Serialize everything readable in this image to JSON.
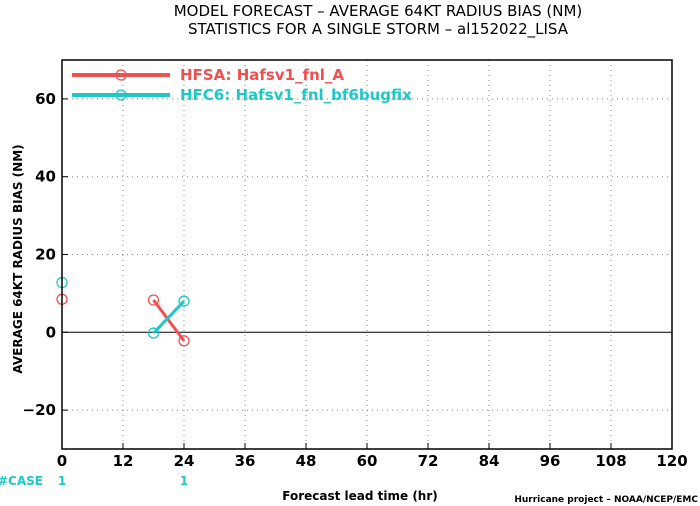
{
  "title_line1": "MODEL FORECAST – AVERAGE 64KT RADIUS BIAS (NM)",
  "title_line2": "STATISTICS FOR A SINGLE STORM – al152022_LISA",
  "credit": "Hurricane project – NOAA/NCEP/EMC",
  "case_label": "#CASE",
  "case_counts": [
    {
      "x": 0,
      "label": "1"
    },
    {
      "x": 24,
      "label": "1"
    }
  ],
  "colors": {
    "hfsa": "#f05050",
    "hfc6": "#1fc8c8",
    "zero_line": "#000000",
    "grid": "#888888"
  },
  "chart_data": {
    "type": "line",
    "title": "MODEL FORECAST – AVERAGE 64KT RADIUS BIAS (NM)",
    "subtitle": "STATISTICS FOR A SINGLE STORM – al152022_LISA",
    "xlabel": "Forecast lead time (hr)",
    "ylabel": "AVERAGE 64KT RADIUS BIAS (NM)",
    "xlim": [
      0,
      120
    ],
    "ylim": [
      -30,
      70
    ],
    "xticks": [
      0,
      12,
      24,
      36,
      48,
      60,
      72,
      84,
      96,
      108,
      120
    ],
    "xtick_labels": [
      "0",
      "12",
      "24",
      "36",
      "48",
      "60",
      "72",
      "84",
      "96",
      "108",
      "120"
    ],
    "yticks": [
      -20,
      0,
      20,
      40,
      60
    ],
    "ytick_labels": [
      "−20",
      "0",
      "20",
      "40",
      "60"
    ],
    "grid": true,
    "legend_position": "top-left",
    "series": [
      {
        "name": "HFSA: Hafsv1_fnl_A",
        "color": "#f05050",
        "points": [
          {
            "x": 0,
            "y": 8.5,
            "connected": false
          },
          {
            "x": 18,
            "y": 8.3,
            "connected": true
          },
          {
            "x": 24,
            "y": -2.2,
            "connected": true
          }
        ]
      },
      {
        "name": "HFC6: Hafsv1_fnl_bf6bugfix",
        "color": "#1fc8c8",
        "points": [
          {
            "x": 0,
            "y": 12.8,
            "connected": false
          },
          {
            "x": 18,
            "y": -0.2,
            "connected": true
          },
          {
            "x": 24,
            "y": 8.0,
            "connected": true
          }
        ]
      }
    ]
  }
}
